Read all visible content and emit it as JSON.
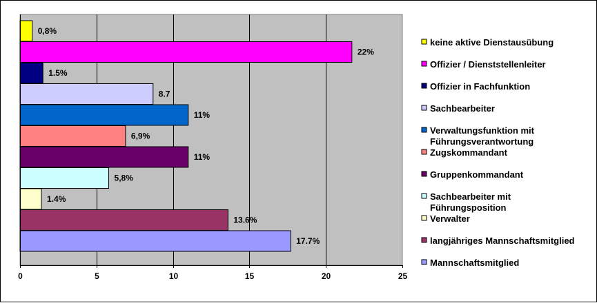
{
  "chart_data": {
    "type": "bar",
    "orientation": "horizontal",
    "title": "",
    "xlabel": "",
    "ylabel": "",
    "xlim": [
      0,
      25
    ],
    "x_ticks": [
      "0",
      "5",
      "10",
      "15",
      "20",
      "25"
    ],
    "grid": true,
    "plot_background": "#C0C0C0",
    "legend_position": "right",
    "categories": [
      "keine aktive Dienstausübung",
      "Offizier / Dienststellenleiter",
      "Offizier in Fachfunktion",
      "Sachbearbeiter",
      "Verwaltungsfunktion mit Führungsverantwortung",
      "Zugskommandant",
      "Gruppenkommandant",
      "Sachbearbeiter mit Führungsposition",
      "Verwalter",
      "langjähriges Mannschaftsmitglied",
      "Mannschaftsmitglied"
    ],
    "legend_lines": [
      [
        "keine aktive Dienstausübung"
      ],
      [
        "Offizier / Dienststellenleiter"
      ],
      [
        "Offizier in Fachfunktion"
      ],
      [
        "Sachbearbeiter"
      ],
      [
        "Verwaltungsfunktion mit",
        "Führungsverantwortung"
      ],
      [
        "Zugskommandant"
      ],
      [
        "Gruppenkommandant"
      ],
      [
        "Sachbearbeiter mit",
        "Führungsposition"
      ],
      [
        "Verwalter"
      ],
      [
        "langjähriges Mannschaftsmitglied"
      ],
      [
        "Mannschaftsmitglied"
      ]
    ],
    "values": [
      0.8,
      21.7,
      1.5,
      8.7,
      11,
      6.9,
      11,
      5.8,
      1.4,
      13.6,
      17.7
    ],
    "data_labels": [
      "0,8%",
      "22%",
      "1.5%",
      "8.7",
      "11%",
      "6,9%",
      "11%",
      "5,8%",
      "1.4%",
      "13.6%",
      "17.7%"
    ],
    "colors": [
      "#FFFF00",
      "#FF00FF",
      "#000080",
      "#CCCCFF",
      "#0066CC",
      "#FF8080",
      "#660066",
      "#CCFFFF",
      "#FFFFCC",
      "#993366",
      "#9999FF"
    ]
  }
}
